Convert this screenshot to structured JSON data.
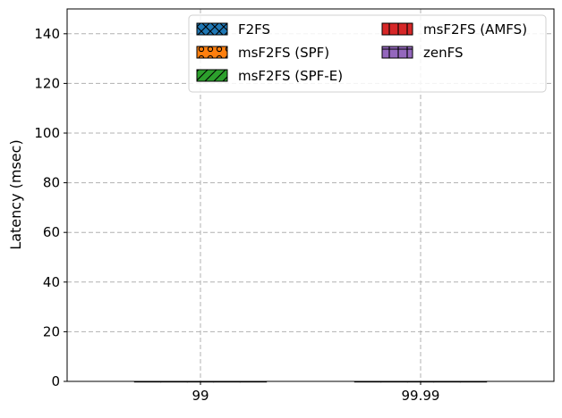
{
  "chart_data": {
    "type": "bar",
    "categories": [
      "99",
      "99.99"
    ],
    "ylabel": "Latency (msec)",
    "xlabel": "",
    "ylim": [
      0,
      150
    ],
    "yticks": [
      0,
      20,
      40,
      60,
      80,
      100,
      120,
      140
    ],
    "grid": true,
    "legend_position": "top-right",
    "legend_columns": 2,
    "series": [
      {
        "name": "F2FS",
        "values": [
          0,
          0
        ],
        "color": "#1f77b4",
        "hatch": "x"
      },
      {
        "name": "msF2FS (SPF)",
        "values": [
          0,
          0
        ],
        "color": "#ff7f0e",
        "hatch": "o"
      },
      {
        "name": "msF2FS (SPF-E)",
        "values": [
          0,
          0
        ],
        "color": "#2ca02c",
        "hatch": "/"
      },
      {
        "name": "msF2FS (AMFS)",
        "values": [
          0,
          0
        ],
        "color": "#d62728",
        "hatch": "|"
      },
      {
        "name": "zenFS",
        "values": [
          0,
          0
        ],
        "color": "#9467bd",
        "hatch": "+"
      }
    ]
  }
}
